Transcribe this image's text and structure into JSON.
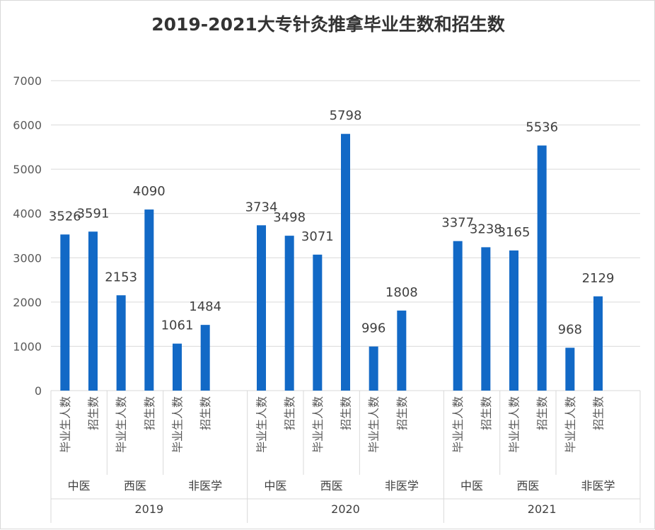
{
  "chart_data": {
    "type": "bar",
    "title": "2019-2021大专针灸推拿毕业生数和招生数",
    "ylim": [
      0,
      7000
    ],
    "yticks": [
      0,
      1000,
      2000,
      3000,
      4000,
      5000,
      6000,
      7000
    ],
    "grid": true,
    "bar_color": "#1269c6",
    "years": [
      {
        "label": "2019",
        "groups": [
          {
            "label": "中医",
            "bars": [
              {
                "label": "毕业生人数",
                "value": 3526
              },
              {
                "label": "招生数",
                "value": 3591
              }
            ]
          },
          {
            "label": "西医",
            "bars": [
              {
                "label": "毕业生人数",
                "value": 2153
              },
              {
                "label": "招生数",
                "value": 4090
              }
            ]
          },
          {
            "label": "非医学",
            "bars": [
              {
                "label": "毕业生人数",
                "value": 1061
              },
              {
                "label": "招生数",
                "value": 1484
              }
            ]
          }
        ]
      },
      {
        "label": "2020",
        "groups": [
          {
            "label": "中医",
            "bars": [
              {
                "label": "毕业生人数",
                "value": 3734
              },
              {
                "label": "招生数",
                "value": 3498
              }
            ]
          },
          {
            "label": "西医",
            "bars": [
              {
                "label": "毕业生人数",
                "value": 3071
              },
              {
                "label": "招生数",
                "value": 5798
              }
            ]
          },
          {
            "label": "非医学",
            "bars": [
              {
                "label": "毕业生人数",
                "value": 996
              },
              {
                "label": "招生数",
                "value": 1808
              }
            ]
          }
        ]
      },
      {
        "label": "2021",
        "groups": [
          {
            "label": "中医",
            "bars": [
              {
                "label": "毕业生人数",
                "value": 3377
              },
              {
                "label": "招生数",
                "value": 3238
              }
            ]
          },
          {
            "label": "西医",
            "bars": [
              {
                "label": "毕业生人数",
                "value": 3165
              },
              {
                "label": "招生数",
                "value": 5536
              }
            ]
          },
          {
            "label": "非医学",
            "bars": [
              {
                "label": "毕业生人数",
                "value": 968
              },
              {
                "label": "招生数",
                "value": 2129
              }
            ]
          }
        ]
      }
    ]
  }
}
